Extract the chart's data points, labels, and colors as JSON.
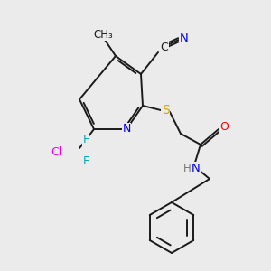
{
  "bg_color": "#ebebeb",
  "bond_color": "#1a1a1a",
  "colors": {
    "N": "#0000ee",
    "S": "#ccaa00",
    "O": "#ff0000",
    "F": "#00aaaa",
    "Cl": "#ee00ee",
    "C": "#1a1a1a",
    "CN_C": "#1a1a1a",
    "CN_N": "#0000ee",
    "H": "#777777"
  }
}
